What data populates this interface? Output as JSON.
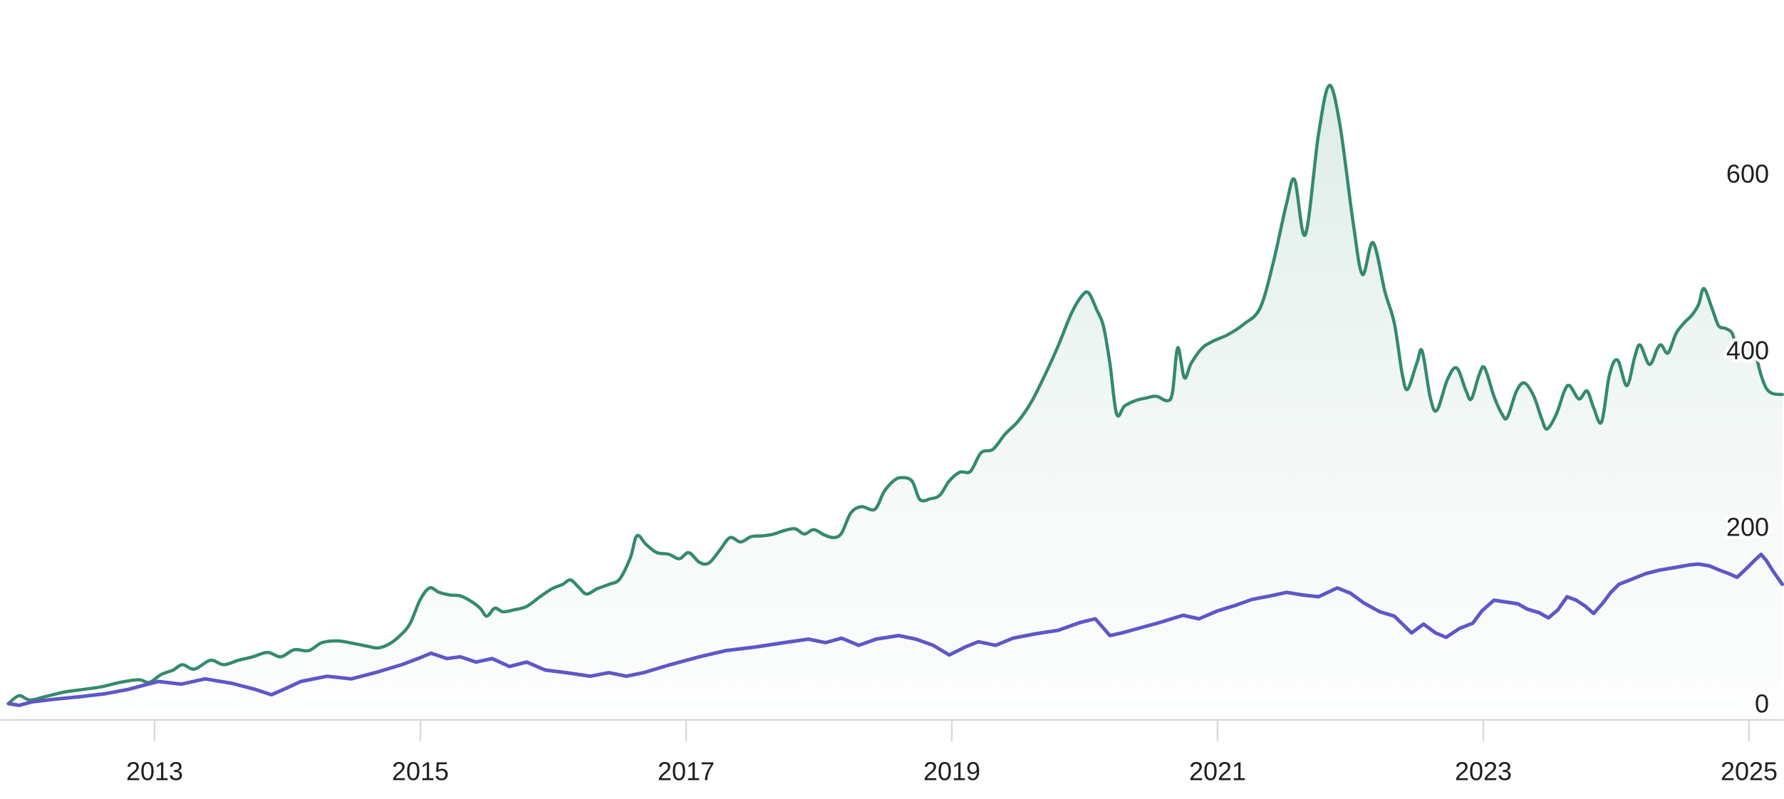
{
  "chart_data": {
    "type": "area",
    "title": "",
    "xlabel": "",
    "ylabel": "",
    "background": "#ffffff",
    "grid": false,
    "legend": "none",
    "x_axis": {
      "tick_years": [
        2013,
        2015,
        2017,
        2019,
        2021,
        2023,
        2025
      ],
      "tick_labels": [
        "2013",
        "2015",
        "2017",
        "2019",
        "2021",
        "2023",
        "2025"
      ],
      "range_years": [
        2011.88,
        2025.27
      ],
      "line_color": "#d9d9d9",
      "label_color": "#1f1f1f"
    },
    "y_axis": {
      "side": "right",
      "ticks": [
        0,
        200,
        400,
        600
      ],
      "tick_labels": [
        "0",
        "200",
        "400",
        "600"
      ],
      "range": [
        -105,
        795
      ],
      "label_color": "#1f1f1f"
    },
    "series": [
      {
        "name": "green-area-series",
        "type": "area",
        "color": "#348a6c",
        "fill_top": "rgba(52,138,108,0.16)",
        "fill_mid": "rgba(52,138,108,0.06)",
        "fill_bottom": "rgba(52,138,108,0.01)",
        "smooth": true,
        "points": [
          [
            2011.9,
            0
          ],
          [
            2011.98,
            9
          ],
          [
            2012.06,
            4
          ],
          [
            2012.18,
            8
          ],
          [
            2012.32,
            13
          ],
          [
            2012.46,
            16
          ],
          [
            2012.6,
            19
          ],
          [
            2012.74,
            24
          ],
          [
            2012.88,
            27
          ],
          [
            2012.96,
            24
          ],
          [
            2013.05,
            33
          ],
          [
            2013.14,
            38
          ],
          [
            2013.21,
            44
          ],
          [
            2013.3,
            39
          ],
          [
            2013.42,
            49
          ],
          [
            2013.52,
            44
          ],
          [
            2013.63,
            49
          ],
          [
            2013.74,
            53
          ],
          [
            2013.85,
            58
          ],
          [
            2013.95,
            53
          ],
          [
            2014.05,
            61
          ],
          [
            2014.16,
            60
          ],
          [
            2014.26,
            69
          ],
          [
            2014.38,
            71
          ],
          [
            2014.5,
            68
          ],
          [
            2014.6,
            65
          ],
          [
            2014.68,
            63
          ],
          [
            2014.76,
            67
          ],
          [
            2014.84,
            76
          ],
          [
            2014.92,
            90
          ],
          [
            2015.0,
            118
          ],
          [
            2015.07,
            131
          ],
          [
            2015.14,
            126
          ],
          [
            2015.22,
            123
          ],
          [
            2015.3,
            122
          ],
          [
            2015.38,
            116
          ],
          [
            2015.45,
            108
          ],
          [
            2015.5,
            99
          ],
          [
            2015.56,
            108
          ],
          [
            2015.62,
            104
          ],
          [
            2015.7,
            106
          ],
          [
            2015.8,
            110
          ],
          [
            2015.9,
            121
          ],
          [
            2015.99,
            130
          ],
          [
            2016.07,
            135
          ],
          [
            2016.13,
            140
          ],
          [
            2016.19,
            132
          ],
          [
            2016.25,
            124
          ],
          [
            2016.33,
            130
          ],
          [
            2016.42,
            135
          ],
          [
            2016.5,
            141
          ],
          [
            2016.58,
            165
          ],
          [
            2016.63,
            190
          ],
          [
            2016.7,
            180
          ],
          [
            2016.78,
            171
          ],
          [
            2016.87,
            169
          ],
          [
            2016.95,
            164
          ],
          [
            2017.02,
            171
          ],
          [
            2017.1,
            160
          ],
          [
            2017.17,
            159
          ],
          [
            2017.25,
            173
          ],
          [
            2017.33,
            188
          ],
          [
            2017.41,
            183
          ],
          [
            2017.49,
            189
          ],
          [
            2017.58,
            190
          ],
          [
            2017.66,
            192
          ],
          [
            2017.74,
            196
          ],
          [
            2017.82,
            198
          ],
          [
            2017.89,
            192
          ],
          [
            2017.96,
            197
          ],
          [
            2018.04,
            191
          ],
          [
            2018.11,
            188
          ],
          [
            2018.17,
            193
          ],
          [
            2018.24,
            216
          ],
          [
            2018.32,
            223
          ],
          [
            2018.42,
            220
          ],
          [
            2018.49,
            240
          ],
          [
            2018.56,
            252
          ],
          [
            2018.62,
            256
          ],
          [
            2018.7,
            252
          ],
          [
            2018.76,
            231
          ],
          [
            2018.84,
            232
          ],
          [
            2018.91,
            236
          ],
          [
            2018.98,
            252
          ],
          [
            2019.06,
            262
          ],
          [
            2019.14,
            263
          ],
          [
            2019.22,
            284
          ],
          [
            2019.31,
            288
          ],
          [
            2019.4,
            305
          ],
          [
            2019.5,
            320
          ],
          [
            2019.6,
            342
          ],
          [
            2019.7,
            372
          ],
          [
            2019.8,
            405
          ],
          [
            2019.9,
            442
          ],
          [
            2019.98,
            462
          ],
          [
            2020.03,
            465
          ],
          [
            2020.09,
            446
          ],
          [
            2020.14,
            428
          ],
          [
            2020.19,
            385
          ],
          [
            2020.24,
            328
          ],
          [
            2020.3,
            337
          ],
          [
            2020.38,
            343
          ],
          [
            2020.46,
            346
          ],
          [
            2020.54,
            348
          ],
          [
            2020.62,
            343
          ],
          [
            2020.66,
            352
          ],
          [
            2020.7,
            403
          ],
          [
            2020.75,
            369
          ],
          [
            2020.8,
            385
          ],
          [
            2020.88,
            402
          ],
          [
            2020.96,
            410
          ],
          [
            2021.08,
            418
          ],
          [
            2021.2,
            430
          ],
          [
            2021.32,
            448
          ],
          [
            2021.42,
            500
          ],
          [
            2021.52,
            567
          ],
          [
            2021.58,
            593
          ],
          [
            2021.66,
            531
          ],
          [
            2021.76,
            645
          ],
          [
            2021.84,
            700
          ],
          [
            2021.92,
            656
          ],
          [
            2022.02,
            545
          ],
          [
            2022.09,
            486
          ],
          [
            2022.17,
            522
          ],
          [
            2022.26,
            466
          ],
          [
            2022.33,
            431
          ],
          [
            2022.39,
            373
          ],
          [
            2022.43,
            356
          ],
          [
            2022.5,
            386
          ],
          [
            2022.54,
            399
          ],
          [
            2022.6,
            347
          ],
          [
            2022.65,
            332
          ],
          [
            2022.73,
            367
          ],
          [
            2022.8,
            380
          ],
          [
            2022.87,
            354
          ],
          [
            2022.91,
            345
          ],
          [
            2022.97,
            373
          ],
          [
            2023.01,
            380
          ],
          [
            2023.08,
            348
          ],
          [
            2023.14,
            328
          ],
          [
            2023.18,
            324
          ],
          [
            2023.25,
            354
          ],
          [
            2023.31,
            363
          ],
          [
            2023.38,
            348
          ],
          [
            2023.44,
            322
          ],
          [
            2023.48,
            311
          ],
          [
            2023.55,
            328
          ],
          [
            2023.61,
            354
          ],
          [
            2023.65,
            360
          ],
          [
            2023.72,
            345
          ],
          [
            2023.78,
            354
          ],
          [
            2023.83,
            335
          ],
          [
            2023.89,
            319
          ],
          [
            2023.95,
            373
          ],
          [
            2024.01,
            389
          ],
          [
            2024.08,
            360
          ],
          [
            2024.14,
            393
          ],
          [
            2024.18,
            406
          ],
          [
            2024.25,
            384
          ],
          [
            2024.31,
            402
          ],
          [
            2024.34,
            406
          ],
          [
            2024.39,
            397
          ],
          [
            2024.45,
            419
          ],
          [
            2024.51,
            431
          ],
          [
            2024.57,
            440
          ],
          [
            2024.62,
            452
          ],
          [
            2024.66,
            470
          ],
          [
            2024.72,
            448
          ],
          [
            2024.77,
            428
          ],
          [
            2024.82,
            425
          ],
          [
            2024.87,
            420
          ],
          [
            2024.91,
            404
          ],
          [
            2024.96,
            408
          ],
          [
            2025.01,
            410
          ],
          [
            2025.05,
            395
          ],
          [
            2025.09,
            372
          ],
          [
            2025.13,
            357
          ],
          [
            2025.18,
            351
          ],
          [
            2025.25,
            350
          ]
        ]
      },
      {
        "name": "purple-line-series",
        "type": "line",
        "color": "#5e57c7",
        "smooth": false,
        "points": [
          [
            2011.9,
            0
          ],
          [
            2011.98,
            -2
          ],
          [
            2012.08,
            2
          ],
          [
            2012.25,
            5
          ],
          [
            2012.45,
            8
          ],
          [
            2012.62,
            11
          ],
          [
            2012.8,
            16
          ],
          [
            2012.95,
            22
          ],
          [
            2013.03,
            25
          ],
          [
            2013.2,
            22
          ],
          [
            2013.38,
            28
          ],
          [
            2013.58,
            23
          ],
          [
            2013.76,
            16
          ],
          [
            2013.88,
            10
          ],
          [
            2014.0,
            18
          ],
          [
            2014.1,
            25
          ],
          [
            2014.3,
            31
          ],
          [
            2014.48,
            28
          ],
          [
            2014.66,
            35
          ],
          [
            2014.86,
            44
          ],
          [
            2015.0,
            52
          ],
          [
            2015.08,
            57
          ],
          [
            2015.2,
            51
          ],
          [
            2015.3,
            53
          ],
          [
            2015.42,
            47
          ],
          [
            2015.54,
            51
          ],
          [
            2015.67,
            42
          ],
          [
            2015.8,
            47
          ],
          [
            2015.94,
            38
          ],
          [
            2016.1,
            35
          ],
          [
            2016.28,
            31
          ],
          [
            2016.42,
            35
          ],
          [
            2016.55,
            31
          ],
          [
            2016.68,
            35
          ],
          [
            2016.88,
            44
          ],
          [
            2017.1,
            53
          ],
          [
            2017.3,
            60
          ],
          [
            2017.52,
            64
          ],
          [
            2017.74,
            69
          ],
          [
            2017.92,
            73
          ],
          [
            2018.05,
            69
          ],
          [
            2018.17,
            74
          ],
          [
            2018.3,
            66
          ],
          [
            2018.43,
            73
          ],
          [
            2018.6,
            77
          ],
          [
            2018.73,
            73
          ],
          [
            2018.86,
            66
          ],
          [
            2018.98,
            55
          ],
          [
            2019.1,
            64
          ],
          [
            2019.2,
            70
          ],
          [
            2019.33,
            66
          ],
          [
            2019.46,
            74
          ],
          [
            2019.63,
            79
          ],
          [
            2019.8,
            83
          ],
          [
            2019.97,
            92
          ],
          [
            2020.08,
            96
          ],
          [
            2020.19,
            77
          ],
          [
            2020.28,
            80
          ],
          [
            2020.4,
            85
          ],
          [
            2020.57,
            92
          ],
          [
            2020.74,
            100
          ],
          [
            2020.86,
            96
          ],
          [
            2021.0,
            105
          ],
          [
            2021.13,
            111
          ],
          [
            2021.26,
            118
          ],
          [
            2021.4,
            122
          ],
          [
            2021.52,
            126
          ],
          [
            2021.64,
            123
          ],
          [
            2021.76,
            121
          ],
          [
            2021.9,
            131
          ],
          [
            2022.0,
            125
          ],
          [
            2022.1,
            114
          ],
          [
            2022.22,
            104
          ],
          [
            2022.33,
            99
          ],
          [
            2022.46,
            80
          ],
          [
            2022.55,
            90
          ],
          [
            2022.64,
            80
          ],
          [
            2022.72,
            75
          ],
          [
            2022.82,
            85
          ],
          [
            2022.92,
            91
          ],
          [
            2022.99,
            105
          ],
          [
            2023.08,
            117
          ],
          [
            2023.17,
            115
          ],
          [
            2023.26,
            113
          ],
          [
            2023.33,
            107
          ],
          [
            2023.42,
            103
          ],
          [
            2023.49,
            97
          ],
          [
            2023.56,
            106
          ],
          [
            2023.63,
            121
          ],
          [
            2023.7,
            117
          ],
          [
            2023.77,
            110
          ],
          [
            2023.83,
            102
          ],
          [
            2023.9,
            114
          ],
          [
            2023.96,
            126
          ],
          [
            2024.02,
            135
          ],
          [
            2024.12,
            141
          ],
          [
            2024.22,
            147
          ],
          [
            2024.32,
            151
          ],
          [
            2024.44,
            154
          ],
          [
            2024.55,
            157
          ],
          [
            2024.62,
            158
          ],
          [
            2024.7,
            156
          ],
          [
            2024.78,
            151
          ],
          [
            2024.85,
            147
          ],
          [
            2024.91,
            143
          ],
          [
            2024.98,
            153
          ],
          [
            2025.04,
            162
          ],
          [
            2025.09,
            169
          ],
          [
            2025.13,
            162
          ],
          [
            2025.18,
            150
          ],
          [
            2025.25,
            135
          ]
        ]
      }
    ]
  }
}
